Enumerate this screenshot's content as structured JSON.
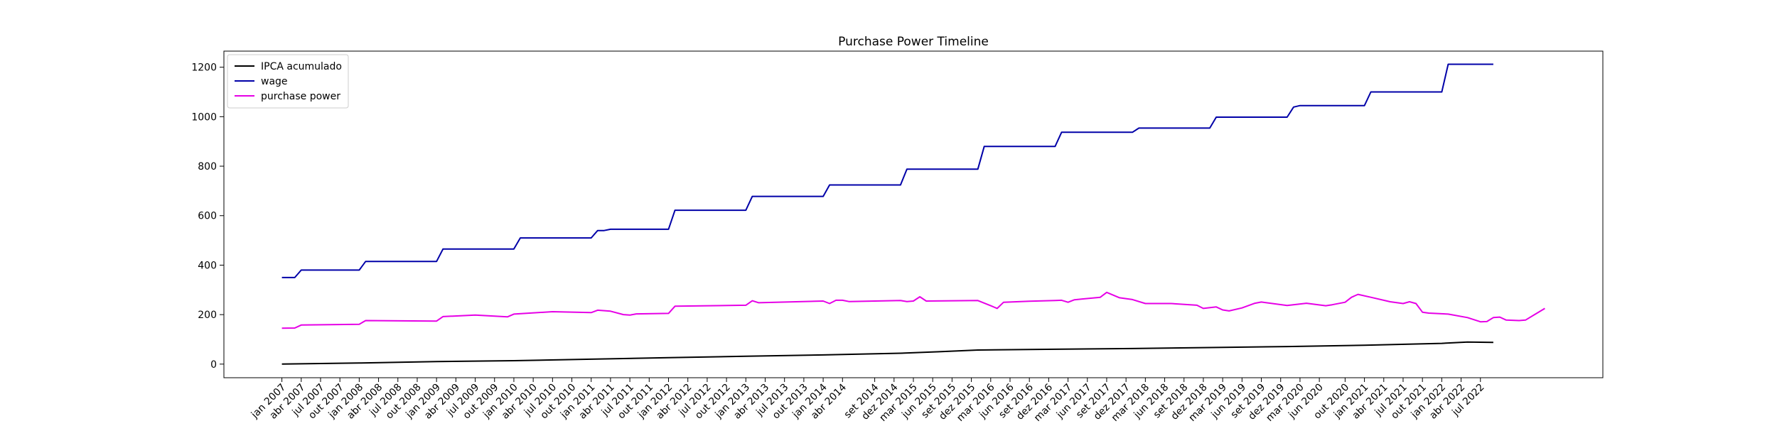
{
  "chart_data": {
    "type": "line",
    "title": "Purchase Power Timeline",
    "xlabel": "",
    "ylabel": "",
    "ylim": [
      -55,
      1265
    ],
    "xlim": [
      -9,
      205
    ],
    "grid": false,
    "legend_position": "upper-left",
    "y_ticks": [
      0,
      200,
      400,
      600,
      800,
      1000,
      1200
    ],
    "x_ticks": [
      {
        "i": 0,
        "label": "jan 2007"
      },
      {
        "i": 3,
        "label": "abr 2007"
      },
      {
        "i": 6,
        "label": "jul 2007"
      },
      {
        "i": 9,
        "label": "out 2007"
      },
      {
        "i": 12,
        "label": "jan 2008"
      },
      {
        "i": 15,
        "label": "abr 2008"
      },
      {
        "i": 18,
        "label": "jul 2008"
      },
      {
        "i": 21,
        "label": "out 2008"
      },
      {
        "i": 24,
        "label": "jan 2009"
      },
      {
        "i": 27,
        "label": "abr 2009"
      },
      {
        "i": 30,
        "label": "jul 2009"
      },
      {
        "i": 33,
        "label": "out 2009"
      },
      {
        "i": 36,
        "label": "jan 2010"
      },
      {
        "i": 39,
        "label": "abr 2010"
      },
      {
        "i": 42,
        "label": "jul 2010"
      },
      {
        "i": 45,
        "label": "out 2010"
      },
      {
        "i": 48,
        "label": "jan 2011"
      },
      {
        "i": 51,
        "label": "abr 2011"
      },
      {
        "i": 54,
        "label": "jul 2011"
      },
      {
        "i": 57,
        "label": "out 2011"
      },
      {
        "i": 60,
        "label": "jan 2012"
      },
      {
        "i": 63,
        "label": "abr 2012"
      },
      {
        "i": 66,
        "label": "jul 2012"
      },
      {
        "i": 69,
        "label": "out 2012"
      },
      {
        "i": 72,
        "label": "jan 2013"
      },
      {
        "i": 75,
        "label": "abr 2013"
      },
      {
        "i": 78,
        "label": "jul 2013"
      },
      {
        "i": 81,
        "label": "out 2013"
      },
      {
        "i": 84,
        "label": "jan 2014"
      },
      {
        "i": 87,
        "label": "abr 2014"
      },
      {
        "i": 92,
        "label": "set 2014"
      },
      {
        "i": 95,
        "label": "dez 2014"
      },
      {
        "i": 98,
        "label": "mar 2015"
      },
      {
        "i": 101,
        "label": "jun 2015"
      },
      {
        "i": 104,
        "label": "set 2015"
      },
      {
        "i": 107,
        "label": "dez 2015"
      },
      {
        "i": 110,
        "label": "mar 2016"
      },
      {
        "i": 113,
        "label": "jun 2016"
      },
      {
        "i": 116,
        "label": "set 2016"
      },
      {
        "i": 119,
        "label": "dez 2016"
      },
      {
        "i": 122,
        "label": "mar 2017"
      },
      {
        "i": 125,
        "label": "jun 2017"
      },
      {
        "i": 128,
        "label": "set 2017"
      },
      {
        "i": 131,
        "label": "dez 2017"
      },
      {
        "i": 134,
        "label": "mar 2018"
      },
      {
        "i": 137,
        "label": "jun 2018"
      },
      {
        "i": 140,
        "label": "set 2018"
      },
      {
        "i": 143,
        "label": "dez 2018"
      },
      {
        "i": 146,
        "label": "mar 2019"
      },
      {
        "i": 149,
        "label": "jun 2019"
      },
      {
        "i": 152,
        "label": "set 2019"
      },
      {
        "i": 155,
        "label": "dez 2019"
      },
      {
        "i": 158,
        "label": "mar 2020"
      },
      {
        "i": 161,
        "label": "jun 2020"
      },
      {
        "i": 165,
        "label": "out 2020"
      },
      {
        "i": 168,
        "label": "jan 2021"
      },
      {
        "i": 171,
        "label": "abr 2021"
      },
      {
        "i": 174,
        "label": "jul 2021"
      },
      {
        "i": 177,
        "label": "out 2021"
      },
      {
        "i": 180,
        "label": "jan 2022"
      },
      {
        "i": 183,
        "label": "abr 2022"
      },
      {
        "i": 186,
        "label": "jul 2022"
      }
    ],
    "series": [
      {
        "name": "IPCA acumulado",
        "color": "#000000",
        "points": [
          [
            0,
            0
          ],
          [
            12,
            4.5
          ],
          [
            24,
            10
          ],
          [
            36,
            14
          ],
          [
            48,
            20
          ],
          [
            60,
            26
          ],
          [
            72,
            32
          ],
          [
            84,
            37
          ],
          [
            96,
            44
          ],
          [
            102,
            50
          ],
          [
            108,
            57
          ],
          [
            120,
            60
          ],
          [
            132,
            63
          ],
          [
            144,
            67
          ],
          [
            156,
            71
          ],
          [
            168,
            76
          ],
          [
            180,
            84
          ],
          [
            184,
            89
          ],
          [
            188,
            88
          ]
        ]
      },
      {
        "name": "wage",
        "color": "#0000a8",
        "points": [
          [
            0,
            350
          ],
          [
            2,
            350
          ],
          [
            3,
            380
          ],
          [
            12,
            380
          ],
          [
            13,
            415
          ],
          [
            24,
            415
          ],
          [
            25,
            465
          ],
          [
            36,
            465
          ],
          [
            37,
            510
          ],
          [
            48,
            510
          ],
          [
            49,
            540
          ],
          [
            50,
            540
          ],
          [
            51,
            545
          ],
          [
            60,
            545
          ],
          [
            61,
            622
          ],
          [
            72,
            622
          ],
          [
            73,
            678
          ],
          [
            84,
            678
          ],
          [
            85,
            724
          ],
          [
            96,
            724
          ],
          [
            97,
            788
          ],
          [
            108,
            788
          ],
          [
            109,
            880
          ],
          [
            120,
            880
          ],
          [
            121,
            937
          ],
          [
            132,
            937
          ],
          [
            133,
            954
          ],
          [
            144,
            954
          ],
          [
            145,
            998
          ],
          [
            156,
            998
          ],
          [
            157,
            1039
          ],
          [
            158,
            1045
          ],
          [
            168,
            1045
          ],
          [
            169,
            1100
          ],
          [
            180,
            1100
          ],
          [
            181,
            1212
          ],
          [
            188,
            1212
          ]
        ]
      },
      {
        "name": "purchase power",
        "color": "#e600e6",
        "points": [
          [
            0,
            145
          ],
          [
            2,
            146
          ],
          [
            3,
            158
          ],
          [
            12,
            161
          ],
          [
            13,
            176
          ],
          [
            24,
            174
          ],
          [
            25,
            192
          ],
          [
            30,
            198
          ],
          [
            35,
            191
          ],
          [
            36,
            202
          ],
          [
            42,
            212
          ],
          [
            48,
            208
          ],
          [
            49,
            218
          ],
          [
            51,
            214
          ],
          [
            53,
            200
          ],
          [
            54,
            198
          ],
          [
            55,
            203
          ],
          [
            60,
            205
          ],
          [
            61,
            234
          ],
          [
            72,
            238
          ],
          [
            73,
            256
          ],
          [
            74,
            248
          ],
          [
            84,
            255
          ],
          [
            85,
            245
          ],
          [
            86,
            258
          ],
          [
            87,
            258
          ],
          [
            88,
            253
          ],
          [
            96,
            257
          ],
          [
            97,
            253
          ],
          [
            98,
            255
          ],
          [
            99,
            272
          ],
          [
            100,
            255
          ],
          [
            108,
            257
          ],
          [
            110,
            236
          ],
          [
            111,
            225
          ],
          [
            112,
            250
          ],
          [
            116,
            254
          ],
          [
            120,
            257
          ],
          [
            121,
            258
          ],
          [
            122,
            250
          ],
          [
            123,
            260
          ],
          [
            127,
            270
          ],
          [
            128,
            290
          ],
          [
            130,
            268
          ],
          [
            132,
            261
          ],
          [
            134,
            245
          ],
          [
            138,
            245
          ],
          [
            142,
            238
          ],
          [
            143,
            225
          ],
          [
            145,
            231
          ],
          [
            146,
            219
          ],
          [
            147,
            215
          ],
          [
            149,
            227
          ],
          [
            151,
            246
          ],
          [
            152,
            251
          ],
          [
            156,
            237
          ],
          [
            159,
            246
          ],
          [
            162,
            236
          ],
          [
            163,
            240
          ],
          [
            165,
            250
          ],
          [
            166,
            270
          ],
          [
            167,
            282
          ],
          [
            169,
            270
          ],
          [
            172,
            252
          ],
          [
            174,
            245
          ],
          [
            175,
            252
          ],
          [
            176,
            245
          ],
          [
            177,
            210
          ],
          [
            178,
            206
          ],
          [
            181,
            202
          ],
          [
            184,
            188
          ],
          [
            186,
            171
          ],
          [
            187,
            172
          ],
          [
            188,
            188
          ],
          [
            189,
            190
          ],
          [
            190,
            178
          ],
          [
            192,
            176
          ],
          [
            193,
            178
          ],
          [
            196,
            225
          ]
        ]
      }
    ]
  }
}
